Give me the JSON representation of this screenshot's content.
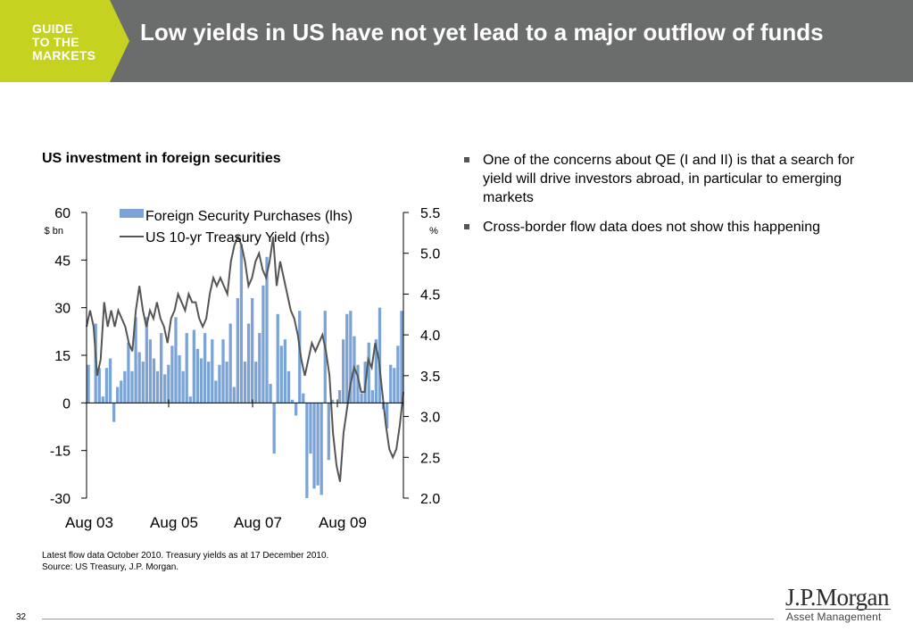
{
  "header": {
    "logo_lines": [
      "GUIDE",
      "TO THE",
      "MARKETS"
    ],
    "title": "Low yields in US have not yet lead to a major outflow of funds"
  },
  "chart_title": "US investment in foreign securities",
  "chart_data": {
    "type": "bar+line",
    "title": "US investment in foreign securities",
    "x_ticks": [
      "Aug 03",
      "Aug 05",
      "Aug 07",
      "Aug 09"
    ],
    "left_axis": {
      "unit": "$ bn",
      "ticks": [
        "60",
        "45",
        "30",
        "15",
        "0",
        "-15",
        "-30"
      ],
      "range": [
        -30,
        60
      ]
    },
    "right_axis": {
      "unit": "%",
      "ticks": [
        "5.5",
        "5.0",
        "4.5",
        "4.0",
        "3.5",
        "3.0",
        "2.5",
        "2.0"
      ],
      "range": [
        2.0,
        5.5
      ]
    },
    "legend": {
      "placement": "top",
      "entries": [
        "Foreign Security Purchases (lhs)",
        "US 10-yr Treasury Yield (rhs)"
      ]
    },
    "series": [
      {
        "name": "Foreign Security Purchases (lhs)",
        "type": "bar",
        "axis": "left",
        "color": "#7ba3d5",
        "values": [
          12,
          0,
          25,
          11,
          2,
          11,
          14,
          -6,
          5,
          7,
          10,
          19,
          10,
          27,
          16,
          13,
          27,
          20,
          14,
          10,
          22,
          9,
          12,
          18,
          27,
          15,
          10,
          22,
          2,
          23,
          17,
          14,
          22,
          13,
          20,
          7,
          12,
          20,
          13,
          25,
          5,
          33,
          50,
          13,
          25,
          33,
          13,
          22,
          37,
          46,
          6,
          -16,
          28,
          18,
          20,
          10,
          1,
          -4,
          29,
          3,
          -30,
          -16,
          -27,
          -26,
          -29,
          29,
          -18,
          1,
          0,
          4,
          20,
          28,
          29,
          21,
          12,
          3,
          13,
          19,
          4,
          20,
          30,
          -2,
          -8,
          12,
          11,
          18,
          29
        ]
      },
      {
        "name": "US 10-yr Treasury Yield (rhs)",
        "type": "line",
        "axis": "right",
        "color": "#555555",
        "values": [
          4.1,
          4.3,
          4.1,
          3.5,
          3.7,
          4.4,
          4.1,
          4.3,
          4.1,
          4.3,
          4.2,
          4.1,
          3.9,
          3.8,
          4.3,
          4.6,
          4.3,
          4.1,
          4.3,
          4.2,
          4.4,
          4.2,
          4.1,
          3.9,
          4.2,
          4.3,
          4.5,
          4.4,
          4.3,
          4.5,
          4.4,
          4.4,
          4.2,
          4.1,
          4.2,
          4.5,
          4.7,
          4.6,
          4.7,
          4.6,
          4.5,
          4.9,
          5.1,
          5.2,
          5.1,
          4.9,
          4.6,
          4.7,
          4.9,
          5.0,
          4.8,
          4.7,
          4.9,
          5.2,
          4.6,
          4.9,
          4.7,
          4.5,
          4.3,
          4.2,
          4.0,
          3.7,
          3.5,
          3.7,
          3.9,
          3.8,
          3.9,
          4.0,
          3.8,
          3.5,
          2.8,
          2.4,
          2.2,
          2.8,
          3.1,
          3.4,
          3.6,
          3.5,
          3.3,
          3.3,
          3.7,
          3.6,
          3.9,
          3.7,
          3.3,
          2.9,
          2.6,
          2.5,
          2.6,
          2.9,
          3.3
        ]
      }
    ]
  },
  "bullets": [
    "One of the concerns about QE (I and II) is that a search for yield will drive investors abroad, in particular to emerging markets",
    "Cross-border flow data does not show this happening"
  ],
  "footnote": {
    "line1": "Latest flow data October 2010. Treasury yields as at 17 December 2010.",
    "line2": "Source:  US Treasury, J.P. Morgan."
  },
  "page_number": "32",
  "brand": {
    "name": "J.P.Morgan",
    "sub": "Asset Management"
  }
}
